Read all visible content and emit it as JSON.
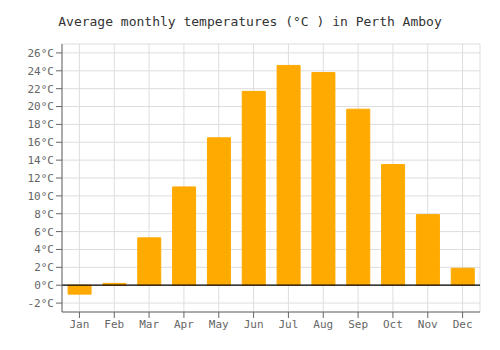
{
  "chart_data": {
    "type": "bar",
    "title": "Average monthly temperatures (°C ) in Perth Amboy",
    "categories": [
      "Jan",
      "Feb",
      "Mar",
      "Apr",
      "May",
      "Jun",
      "Jul",
      "Aug",
      "Sep",
      "Oct",
      "Nov",
      "Dec"
    ],
    "values": [
      -1.0,
      0.2,
      5.3,
      11.0,
      16.5,
      21.7,
      24.6,
      23.8,
      19.7,
      13.5,
      7.9,
      1.9
    ],
    "color": "#FFAA00",
    "ylim": [
      -3,
      27
    ],
    "yticks": [
      {
        "value": -2,
        "label": "-2°C"
      },
      {
        "value": 0,
        "label": "0°C"
      },
      {
        "value": 2,
        "label": "2°C"
      },
      {
        "value": 4,
        "label": "4°C"
      },
      {
        "value": 6,
        "label": "6°C"
      },
      {
        "value": 8,
        "label": "8°C"
      },
      {
        "value": 10,
        "label": "10°C"
      },
      {
        "value": 12,
        "label": "12°C"
      },
      {
        "value": 14,
        "label": "14°C"
      },
      {
        "value": 16,
        "label": "16°C"
      },
      {
        "value": 18,
        "label": "18°C"
      },
      {
        "value": 20,
        "label": "20°C"
      },
      {
        "value": 22,
        "label": "22°C"
      },
      {
        "value": 24,
        "label": "24°C"
      },
      {
        "value": 26,
        "label": "26°C"
      }
    ],
    "grid": true
  }
}
